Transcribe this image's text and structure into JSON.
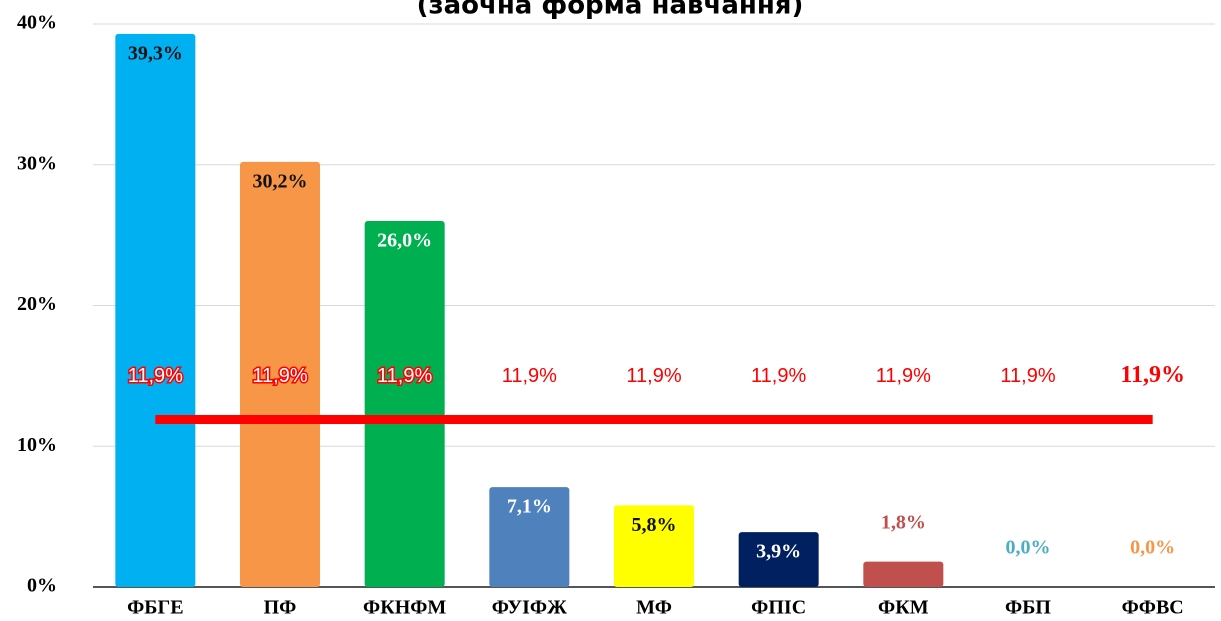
{
  "chart_data": {
    "type": "bar",
    "title": "(заочна форма навчання)",
    "categories": [
      "ФБГЕ",
      "ПФ",
      "ФКНФМ",
      "ФУІФЖ",
      "МФ",
      "ФПІС",
      "ФКМ",
      "ФБП",
      "ФФВС"
    ],
    "values": [
      39.3,
      30.2,
      26.0,
      7.1,
      5.8,
      3.9,
      1.8,
      0.0,
      0.0
    ],
    "value_labels": [
      "39,3%",
      "30,2%",
      "26,0%",
      "7,1%",
      "5,8%",
      "3,9%",
      "1,8%",
      "0,0%",
      "0,0%"
    ],
    "colors": [
      "#00b0f0",
      "#f79646",
      "#00b050",
      "#4f81bd",
      "#ffff00",
      "#002060",
      "#c0504d",
      "#4bacc6",
      "#f79646"
    ],
    "label_colors": [
      "#111111",
      "#111111",
      "#ffffff",
      "#ffffff",
      "#111111",
      "#ffffff",
      "#c0504d",
      "#4bacc6",
      "#f79646"
    ],
    "line": {
      "color": "#ff0000",
      "values": [
        11.9,
        11.9,
        11.9,
        11.9,
        11.9,
        11.9,
        11.9,
        11.9,
        11.9
      ],
      "value_labels": [
        "11,9%",
        "11,9%",
        "11,9%",
        "11,9%",
        "11,9%",
        "11,9%",
        "11,9%",
        "11,9%",
        "11,9%"
      ]
    },
    "ylim": [
      0,
      40
    ],
    "yticks": [
      {
        "value": 0,
        "label": "0%"
      },
      {
        "value": 10,
        "label": "10%"
      },
      {
        "value": 20,
        "label": "20%"
      },
      {
        "value": 30,
        "label": "30%"
      },
      {
        "value": 40,
        "label": "40%"
      }
    ],
    "grid": true
  }
}
